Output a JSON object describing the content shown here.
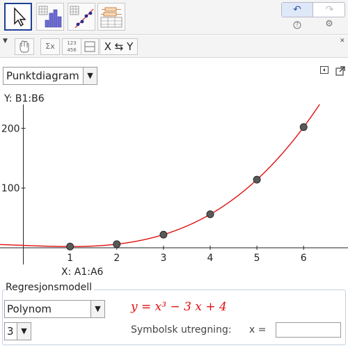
{
  "toolbar": {
    "tools": [
      "move-tool",
      "one-variable-analysis",
      "two-variable-regression",
      "multivariable-analysis"
    ],
    "undo_symbol": "↶",
    "redo_symbol": "↷",
    "help_symbol": "?",
    "settings_symbol": "⚙"
  },
  "stats_toolbar": {
    "menu_arrow": "▼",
    "sigma_label": "Σx",
    "data_label": "123\n456",
    "swap_label": "X ⇆ Y",
    "close_label": "✕"
  },
  "plot_type": {
    "selected": "Punktdiagram",
    "arrow": "▼"
  },
  "axes": {
    "y_source": "Y:  B1:B6",
    "x_source": "X:  A1:A6",
    "x_ticks": [
      "1",
      "2",
      "3",
      "4",
      "5",
      "6"
    ],
    "y_ticks": [
      "100",
      "200"
    ]
  },
  "chart_data": {
    "type": "scatter",
    "x": [
      1,
      2,
      3,
      4,
      5,
      6
    ],
    "y": [
      2,
      6,
      22,
      56,
      114,
      202
    ],
    "xlim": [
      -0.5,
      6.95
    ],
    "ylim": [
      -28,
      240
    ],
    "regression": {
      "model": "Polynom",
      "degree": 3,
      "equation": "y = x³ − 3 x + 4"
    },
    "colors": {
      "curve": "#e01010",
      "point_fill": "#595959",
      "point_stroke": "#2a2a2a"
    }
  },
  "regression_panel": {
    "title": "Regresjonsmodell",
    "model_selected": "Polynom",
    "degree_selected": "3",
    "equation_text": "y = x³ − 3 x + 4",
    "symbolic_label": "Symbolsk utregning:",
    "x_label": "x =",
    "x_value": ""
  }
}
